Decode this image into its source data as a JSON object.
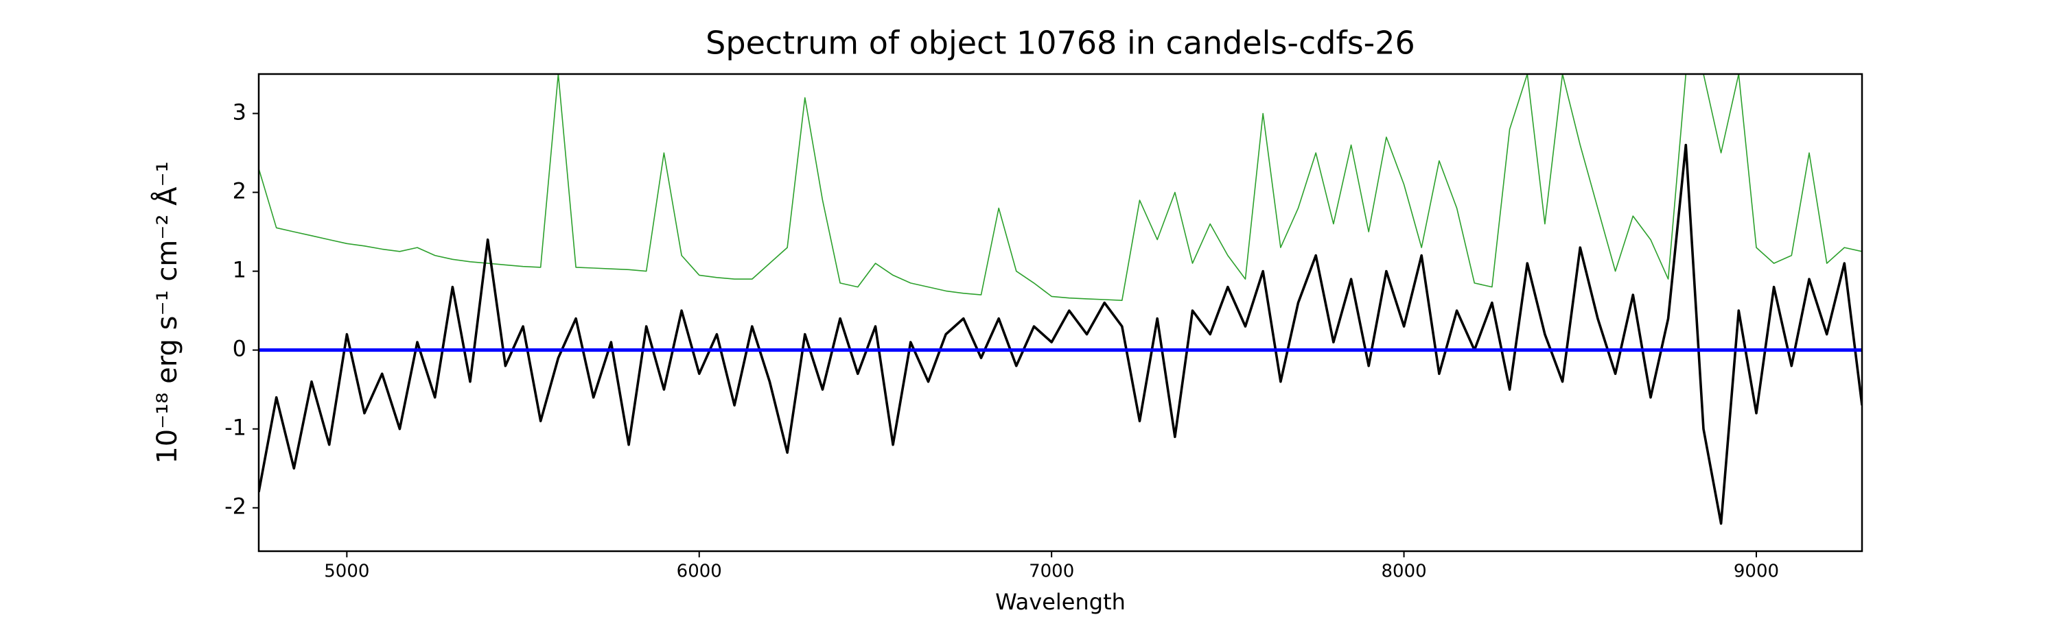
{
  "chart_data": {
    "type": "line",
    "title": "Spectrum of object 10768 in candels-cdfs-26",
    "xlabel": "Wavelength",
    "ylabel": "10⁻¹⁸ erg s⁻¹ cm⁻² Å⁻¹",
    "xlim": [
      4750,
      9300
    ],
    "ylim": [
      -2.55,
      3.5
    ],
    "xticks": [
      5000,
      6000,
      7000,
      8000,
      9000
    ],
    "yticks": [
      -2,
      -1,
      0,
      1,
      2,
      3
    ],
    "x": [
      4750,
      4800,
      4850,
      4900,
      4950,
      5000,
      5050,
      5100,
      5150,
      5200,
      5250,
      5300,
      5350,
      5400,
      5450,
      5500,
      5550,
      5600,
      5650,
      5700,
      5750,
      5800,
      5850,
      5900,
      5950,
      6000,
      6050,
      6100,
      6150,
      6200,
      6250,
      6300,
      6350,
      6400,
      6450,
      6500,
      6550,
      6600,
      6650,
      6700,
      6750,
      6800,
      6850,
      6900,
      6950,
      7000,
      7050,
      7100,
      7150,
      7200,
      7250,
      7300,
      7350,
      7400,
      7450,
      7500,
      7550,
      7600,
      7650,
      7700,
      7750,
      7800,
      7850,
      7900,
      7950,
      8000,
      8050,
      8100,
      8150,
      8200,
      8250,
      8300,
      8350,
      8400,
      8450,
      8500,
      8550,
      8600,
      8650,
      8700,
      8750,
      8800,
      8850,
      8900,
      8950,
      9000,
      9050,
      9100,
      9150,
      9200,
      9250,
      9300
    ],
    "series": [
      {
        "color": "#2ca02c",
        "width": 1.6,
        "values": [
          2.3,
          1.55,
          1.5,
          1.45,
          1.4,
          1.35,
          1.32,
          1.28,
          1.25,
          1.3,
          1.2,
          1.15,
          1.12,
          1.1,
          1.08,
          1.06,
          1.05,
          3.5,
          1.05,
          1.04,
          1.03,
          1.02,
          1.0,
          2.5,
          1.2,
          0.95,
          0.92,
          0.9,
          0.9,
          1.1,
          1.3,
          3.2,
          1.9,
          0.85,
          0.8,
          1.1,
          0.95,
          0.85,
          0.8,
          0.75,
          0.72,
          0.7,
          1.8,
          1.0,
          0.85,
          0.68,
          0.66,
          0.65,
          0.64,
          0.63,
          1.9,
          1.4,
          2.0,
          1.1,
          1.6,
          1.2,
          0.9,
          3.0,
          1.3,
          1.8,
          2.5,
          1.6,
          2.6,
          1.5,
          2.7,
          2.1,
          1.3,
          2.4,
          1.8,
          0.85,
          0.8,
          2.8,
          3.5,
          1.6,
          3.5,
          2.6,
          1.8,
          1.0,
          1.7,
          1.4,
          0.9,
          3.5,
          3.5,
          2.5,
          3.5,
          1.3,
          1.1,
          1.2,
          2.5,
          1.1,
          1.3,
          1.25
        ]
      },
      {
        "color": "#000000",
        "width": 3.6,
        "values": [
          -1.8,
          -0.6,
          -1.5,
          -0.4,
          -1.2,
          0.2,
          -0.8,
          -0.3,
          -1.0,
          0.1,
          -0.6,
          0.8,
          -0.4,
          1.4,
          -0.2,
          0.3,
          -0.9,
          -0.1,
          0.4,
          -0.6,
          0.1,
          -1.2,
          0.3,
          -0.5,
          0.5,
          -0.3,
          0.2,
          -0.7,
          0.3,
          -0.4,
          -1.3,
          0.2,
          -0.5,
          0.4,
          -0.3,
          0.3,
          -1.2,
          0.1,
          -0.4,
          0.2,
          0.4,
          -0.1,
          0.4,
          -0.2,
          0.3,
          0.1,
          0.5,
          0.2,
          0.6,
          0.3,
          -0.9,
          0.4,
          -1.1,
          0.5,
          0.2,
          0.8,
          0.3,
          1.0,
          -0.4,
          0.6,
          1.2,
          0.1,
          0.9,
          -0.2,
          1.0,
          0.3,
          1.2,
          -0.3,
          0.5,
          0.0,
          0.6,
          -0.5,
          1.1,
          0.2,
          -0.4,
          1.3,
          0.4,
          -0.3,
          0.7,
          -0.6,
          0.4,
          2.6,
          -1.0,
          -2.2,
          0.5,
          -0.8,
          0.8,
          -0.2,
          0.9,
          0.2,
          1.1,
          -0.7
        ]
      }
    ],
    "hlines": [
      {
        "y": 0,
        "color": "#0000ff",
        "width": 5
      }
    ]
  }
}
